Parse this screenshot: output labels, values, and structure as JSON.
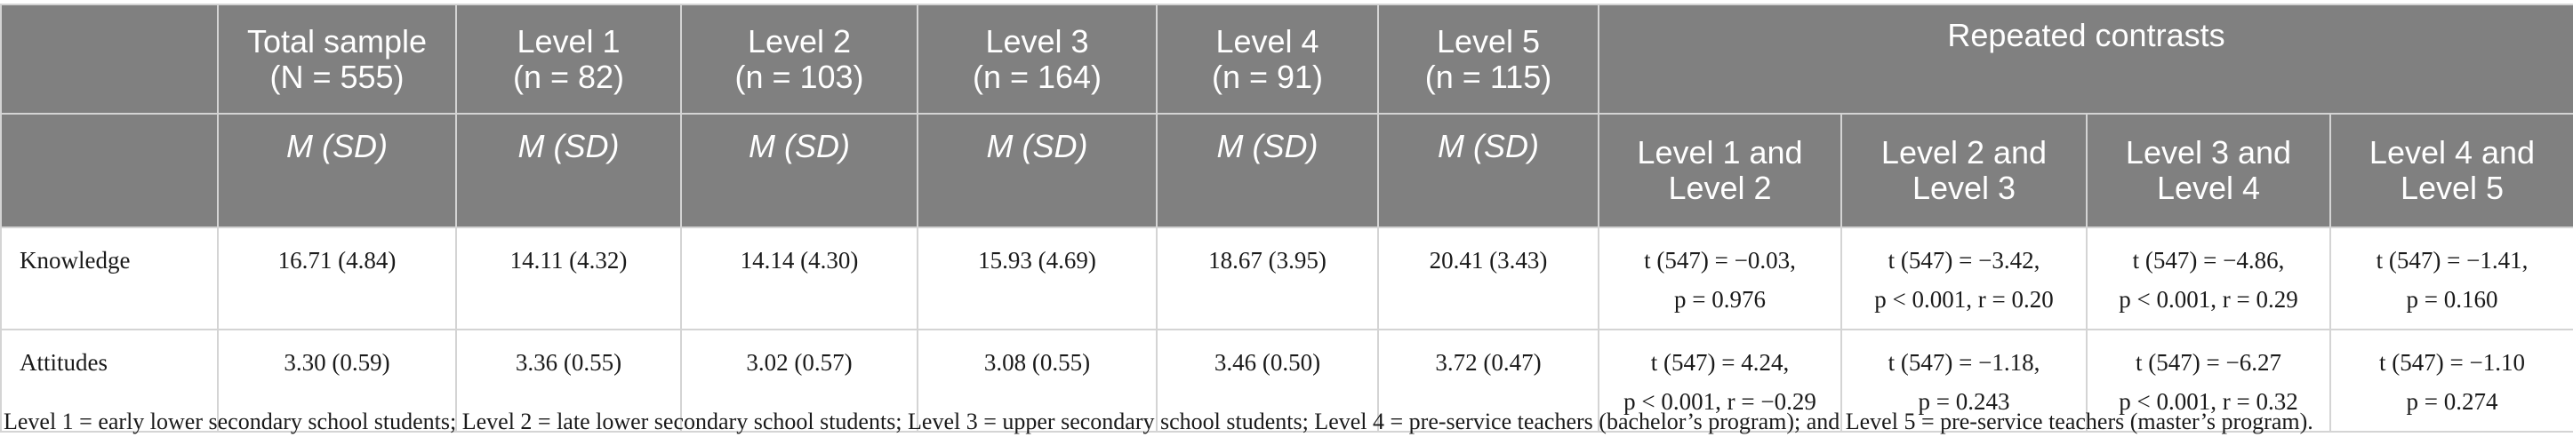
{
  "header": {
    "row1": [
      {
        "line1": "",
        "line2": ""
      },
      {
        "line1": "Total sample",
        "line2": "(N = 555)"
      },
      {
        "line1": "Level 1",
        "line2": "(n = 82)"
      },
      {
        "line1": "Level 2",
        "line2": "(n = 103)"
      },
      {
        "line1": "Level 3",
        "line2": "(n = 164)"
      },
      {
        "line1": "Level 4",
        "line2": "(n = 91)"
      },
      {
        "line1": "Level 5",
        "line2": "(n = 115)"
      }
    ],
    "contrasts_title": "Repeated contrasts",
    "stat_label": "M (SD)",
    "contrast_cols": [
      {
        "line1": "Level 1 and",
        "line2": "Level 2"
      },
      {
        "line1": "Level 2 and",
        "line2": "Level 3"
      },
      {
        "line1": "Level 3 and",
        "line2": "Level 4"
      },
      {
        "line1": "Level 4 and",
        "line2": "Level 5"
      }
    ]
  },
  "rows": [
    {
      "label": "Knowledge",
      "values": [
        "16.71 (4.84)",
        "14.11 (4.32)",
        "14.14 (4.30)",
        "15.93 (4.69)",
        "18.67 (3.95)",
        "20.41 (3.43)"
      ],
      "contrasts": [
        {
          "line1": "t (547) = −0.03,",
          "line2": "p = 0.976"
        },
        {
          "line1": "t (547) = −3.42,",
          "line2": "p < 0.001, r = 0.20"
        },
        {
          "line1": "t (547) = −4.86,",
          "line2": "p < 0.001, r = 0.29"
        },
        {
          "line1": "t (547) = −1.41,",
          "line2": "p = 0.160"
        }
      ]
    },
    {
      "label": "Attitudes",
      "values": [
        "3.30 (0.59)",
        "3.36 (0.55)",
        "3.02 (0.57)",
        "3.08 (0.55)",
        "3.46 (0.50)",
        "3.72 (0.47)"
      ],
      "contrasts": [
        {
          "line1": "t (547) = 4.24,",
          "line2": "p < 0.001, r = −0.29"
        },
        {
          "line1": "t (547) = −1.18,",
          "line2": "p = 0.243"
        },
        {
          "line1": "t (547) = −6.27",
          "line2": "p < 0.001, r = 0.32"
        },
        {
          "line1": "t (547) = −1.10",
          "line2": "p = 0.274"
        }
      ]
    }
  ],
  "note": "Level 1 = early lower secondary school students; Level 2 = late lower secondary school students; Level 3 = upper secondary school students; Level 4 = pre-service teachers (bachelor’s program); and Level 5 = pre-service teachers (master’s program)."
}
